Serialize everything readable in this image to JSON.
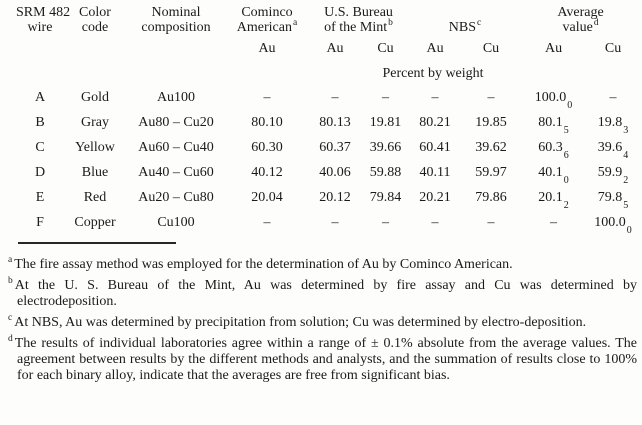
{
  "table": {
    "header": {
      "wire_line1": "SRM 482",
      "wire_line2": "wire",
      "color_line1": "Color",
      "color_line2": "code",
      "nominal_line1": "Nominal",
      "nominal_line2": "composition",
      "cominco_line1": "Cominco",
      "cominco_line2": "American",
      "cominco_note": "a",
      "mint_line1": "U.S. Bureau",
      "mint_line2": "of the Mint",
      "mint_note": "b",
      "nbs_label": "NBS",
      "nbs_note": "c",
      "average_line1": "Average",
      "average_line2": "value",
      "average_note": "d",
      "au_label": "Au",
      "cu_label": "Cu"
    },
    "unit_label": "Percent by weight",
    "columns": [
      {
        "key": "wire",
        "name": "wire-cell",
        "class": "col-wire"
      },
      {
        "key": "color",
        "name": "color-cell",
        "class": "col-color"
      },
      {
        "key": "nominal",
        "name": "nominal-cell",
        "class": "col-nominal"
      },
      {
        "key": "cominco_au",
        "name": "cominco-au-cell",
        "class": "col-num"
      },
      {
        "key": "mint_au",
        "name": "mint-au-cell",
        "class": "col-num"
      },
      {
        "key": "mint_cu",
        "name": "mint-cu-cell",
        "class": "col-num"
      },
      {
        "key": "nbs_au",
        "name": "nbs-au-cell",
        "class": "col-num"
      },
      {
        "key": "nbs_cu",
        "name": "nbs-cu-cell",
        "class": "col-num"
      },
      {
        "key": "avg_au",
        "sub_key": "avg_au_sub",
        "name": "average-au-cell",
        "class": "col-num"
      },
      {
        "key": "avg_cu",
        "sub_key": "avg_cu_sub",
        "name": "average-cu-cell",
        "class": "col-num"
      }
    ],
    "rows": [
      {
        "wire": "A",
        "color": "Gold",
        "nominal": "Au100",
        "cominco_au": "–",
        "mint_au": "–",
        "mint_cu": "–",
        "nbs_au": "–",
        "nbs_cu": "–",
        "avg_au": "100.0",
        "avg_au_sub": "0",
        "avg_cu": "–",
        "avg_cu_sub": ""
      },
      {
        "wire": "B",
        "color": "Gray",
        "nominal": "Au80 – Cu20",
        "cominco_au": "80.10",
        "mint_au": "80.13",
        "mint_cu": "19.81",
        "nbs_au": "80.21",
        "nbs_cu": "19.85",
        "avg_au": "80.1",
        "avg_au_sub": "5",
        "avg_cu": "19.8",
        "avg_cu_sub": "3"
      },
      {
        "wire": "C",
        "color": "Yellow",
        "nominal": "Au60 – Cu40",
        "cominco_au": "60.30",
        "mint_au": "60.37",
        "mint_cu": "39.66",
        "nbs_au": "60.41",
        "nbs_cu": "39.62",
        "avg_au": "60.3",
        "avg_au_sub": "6",
        "avg_cu": "39.6",
        "avg_cu_sub": "4"
      },
      {
        "wire": "D",
        "color": "Blue",
        "nominal": "Au40 – Cu60",
        "cominco_au": "40.12",
        "mint_au": "40.06",
        "mint_cu": "59.88",
        "nbs_au": "40.11",
        "nbs_cu": "59.97",
        "avg_au": "40.1",
        "avg_au_sub": "0",
        "avg_cu": "59.9",
        "avg_cu_sub": "2"
      },
      {
        "wire": "E",
        "color": "Red",
        "nominal": "Au20 – Cu80",
        "cominco_au": "20.04",
        "mint_au": "20.12",
        "mint_cu": "79.84",
        "nbs_au": "20.21",
        "nbs_cu": "79.86",
        "avg_au": "20.1",
        "avg_au_sub": "2",
        "avg_cu": "79.8",
        "avg_cu_sub": "5"
      },
      {
        "wire": "F",
        "color": "Copper",
        "nominal": "Cu100",
        "cominco_au": "–",
        "mint_au": "–",
        "mint_cu": "–",
        "nbs_au": "–",
        "nbs_cu": "–",
        "avg_au": "–",
        "avg_au_sub": "",
        "avg_cu": "100.0",
        "avg_cu_sub": "0"
      }
    ]
  },
  "footnotes": [
    {
      "marker": "a",
      "text": "The fire assay method was employed for the determination of Au by Cominco American."
    },
    {
      "marker": "b",
      "text": "At the U. S. Bureau of the Mint, Au was determined by fire assay and Cu was determined by electrodeposition."
    },
    {
      "marker": "c",
      "text": "At NBS, Au was determined by precipitation from solution; Cu was determined by electro-deposition."
    },
    {
      "marker": "d",
      "text": "The results of individual laboratories agree within a range of ± 0.1% absolute from the average values. The agreement between results by the different methods and analysts, and the summation of results close to 100% for each binary alloy, indicate that the averages are free from significant bias."
    }
  ]
}
